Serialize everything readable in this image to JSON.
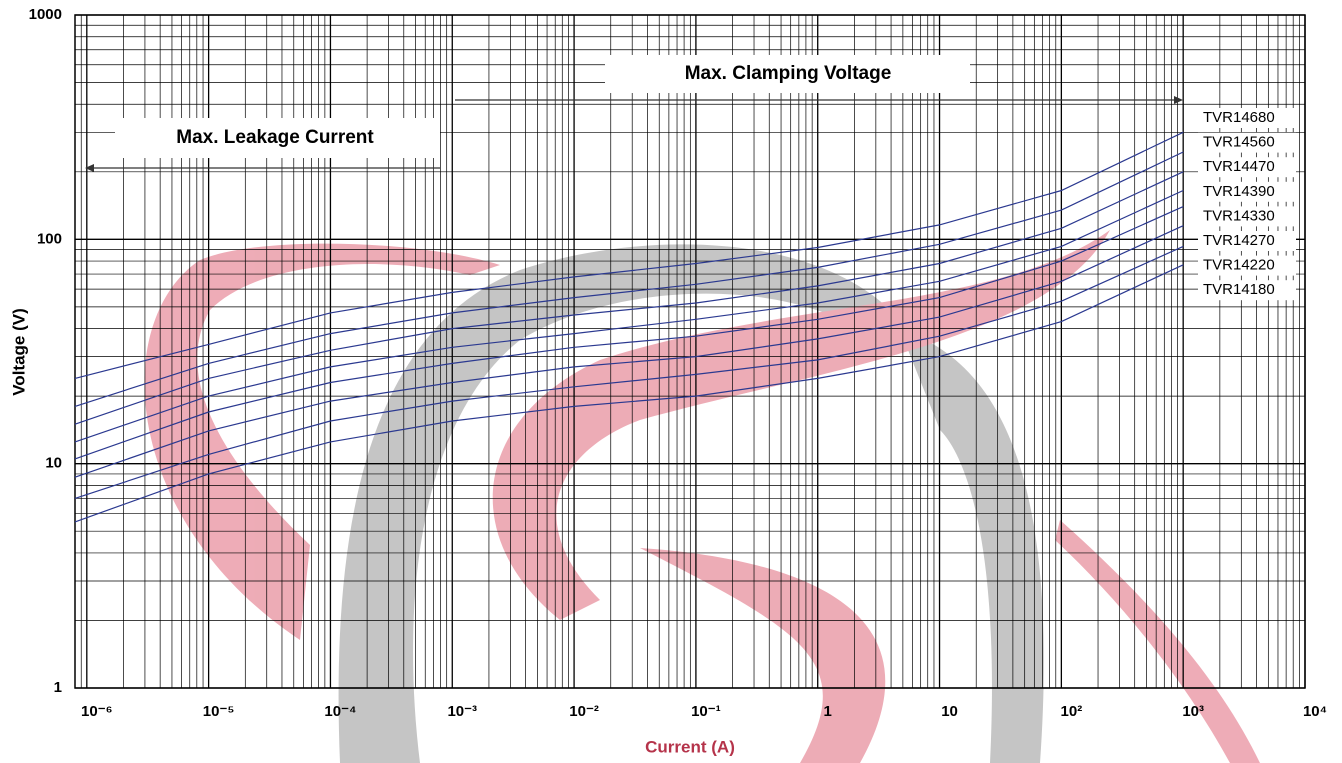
{
  "chart_data": {
    "type": "line",
    "x_label": "Current (A)",
    "y_label": "Voltage  (V)",
    "annotations": [
      "Max.  Clamping  Voltage",
      "Max. Leakage Current"
    ],
    "log_x": true,
    "log_y": true,
    "grid": true,
    "minor_grid": true,
    "xlim": [
      8e-07,
      10000
    ],
    "ylim": [
      1,
      1000
    ],
    "xticks": [
      {
        "value": 1e-06,
        "label": "10⁻⁶"
      },
      {
        "value": 1e-05,
        "label": "10⁻⁵"
      },
      {
        "value": 0.0001,
        "label": "10⁻⁴"
      },
      {
        "value": 0.001,
        "label": "10⁻³"
      },
      {
        "value": 0.01,
        "label": "10⁻²"
      },
      {
        "value": 0.1,
        "label": "10⁻¹"
      },
      1,
      10,
      {
        "value": 100,
        "label": "10²"
      },
      {
        "value": 1000,
        "label": "10³"
      },
      {
        "value": 10000,
        "label": "10⁴"
      }
    ],
    "yticks": [
      1,
      10,
      100,
      1000
    ],
    "x": [
      8e-07,
      1e-05,
      0.0001,
      0.001,
      0.01,
      0.1,
      1,
      10,
      100,
      1000
    ],
    "series": [
      {
        "name": "TVR14680",
        "color": "#2b3990",
        "values": [
          24,
          34,
          47,
          58,
          68,
          78,
          92,
          116,
          165,
          300
        ]
      },
      {
        "name": "TVR14560",
        "color": "#2b3990",
        "values": [
          18,
          28,
          38,
          47,
          55,
          63,
          75,
          95,
          135,
          245
        ]
      },
      {
        "name": "TVR14470",
        "color": "#2b3990",
        "values": [
          15,
          24,
          32,
          40,
          46,
          52,
          62,
          78,
          112,
          200
        ]
      },
      {
        "name": "TVR14390",
        "color": "#2b3990",
        "values": [
          12.5,
          20,
          27,
          33,
          38,
          44,
          52,
          65,
          93,
          165
        ]
      },
      {
        "name": "TVR14330",
        "color": "#2b3990",
        "values": [
          10.5,
          17,
          23,
          28,
          33,
          37,
          44,
          55,
          80,
          140
        ]
      },
      {
        "name": "TVR14270",
        "color": "#2b3990",
        "values": [
          8.7,
          14,
          19,
          23,
          27,
          30,
          36,
          45,
          65,
          115
        ]
      },
      {
        "name": "TVR14220",
        "color": "#2b3990",
        "values": [
          7,
          11,
          15.5,
          19,
          22,
          25,
          29,
          37,
          53,
          93
        ]
      },
      {
        "name": "TVR14180",
        "color": "#2b3990",
        "values": [
          5.5,
          9,
          12.5,
          15.5,
          18,
          20,
          24,
          30,
          43,
          77
        ]
      }
    ]
  }
}
